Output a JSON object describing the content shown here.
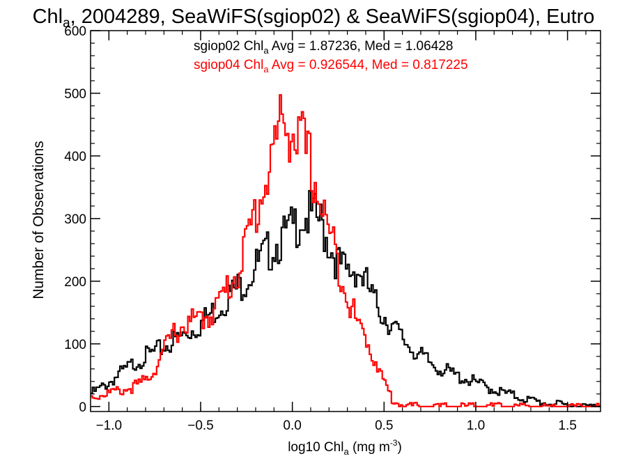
{
  "chart_data": {
    "type": "line",
    "title": {
      "prefix": "Chl",
      "sub": "a",
      "rest": ", 2004289, SeaWiFS(sgiop02) & SeaWiFS(sgiop04), Eutro"
    },
    "xlabel": {
      "prefix": "log10 Chl",
      "sub": "a",
      "rest": " (mg m",
      "sup": "-3",
      "close": ")"
    },
    "ylabel": "Number of Observations",
    "xlim": [
      -1.1,
      1.68
    ],
    "ylim": [
      -8,
      600
    ],
    "xticks": [
      -1.0,
      -0.5,
      0.0,
      0.5,
      1.0,
      1.5
    ],
    "xtick_labels": [
      "−1.0",
      "−0.5",
      "0.0",
      "0.5",
      "1.0",
      "1.5"
    ],
    "yticks": [
      0,
      100,
      200,
      300,
      400,
      500,
      600
    ],
    "ytick_labels": [
      "0",
      "100",
      "200",
      "300",
      "400",
      "500",
      "600"
    ],
    "grid": false,
    "legend_position": "top",
    "series": [
      {
        "color": "#000000",
        "stats": {
          "prefix": "sgiop02 Chl",
          "sub": "a",
          "rest": " Avg = 1.87236, Med = 1.06428"
        },
        "points": [
          [
            -1.1,
            20
          ],
          [
            -1.05,
            28
          ],
          [
            -1.0,
            38
          ],
          [
            -0.95,
            50
          ],
          [
            -0.9,
            60
          ],
          [
            -0.85,
            72
          ],
          [
            -0.8,
            80
          ],
          [
            -0.75,
            86
          ],
          [
            -0.7,
            95
          ],
          [
            -0.65,
            104
          ],
          [
            -0.6,
            112
          ],
          [
            -0.55,
            122
          ],
          [
            -0.5,
            132
          ],
          [
            -0.45,
            146
          ],
          [
            -0.4,
            160
          ],
          [
            -0.35,
            176
          ],
          [
            -0.3,
            188
          ],
          [
            -0.25,
            205
          ],
          [
            -0.2,
            222
          ],
          [
            -0.15,
            240
          ],
          [
            -0.1,
            258
          ],
          [
            -0.05,
            268
          ],
          [
            0.0,
            282
          ],
          [
            0.05,
            305
          ],
          [
            0.1,
            302
          ],
          [
            0.15,
            296
          ],
          [
            0.2,
            262
          ],
          [
            0.25,
            228
          ],
          [
            0.3,
            212
          ],
          [
            0.35,
            222
          ],
          [
            0.4,
            198
          ],
          [
            0.45,
            165
          ],
          [
            0.5,
            146
          ],
          [
            0.55,
            126
          ],
          [
            0.6,
            108
          ],
          [
            0.65,
            94
          ],
          [
            0.7,
            80
          ],
          [
            0.75,
            70
          ],
          [
            0.8,
            62
          ],
          [
            0.85,
            55
          ],
          [
            0.9,
            48
          ],
          [
            0.95,
            44
          ],
          [
            1.0,
            38
          ],
          [
            1.05,
            32
          ],
          [
            1.1,
            27
          ],
          [
            1.15,
            22
          ],
          [
            1.2,
            18
          ],
          [
            1.25,
            14
          ],
          [
            1.3,
            10
          ],
          [
            1.35,
            7
          ],
          [
            1.4,
            5
          ],
          [
            1.45,
            3
          ],
          [
            1.5,
            2
          ],
          [
            1.55,
            1
          ],
          [
            1.6,
            0
          ],
          [
            1.68,
            0
          ]
        ]
      },
      {
        "color": "#ff0000",
        "stats": {
          "prefix": "sgiop04 Chl",
          "sub": "a",
          "rest": " Avg = 0.926544, Med = 0.817225"
        },
        "points": [
          [
            -1.1,
            15
          ],
          [
            -1.05,
            18
          ],
          [
            -1.0,
            22
          ],
          [
            -0.95,
            24
          ],
          [
            -0.9,
            28
          ],
          [
            -0.85,
            33
          ],
          [
            -0.8,
            42
          ],
          [
            -0.75,
            60
          ],
          [
            -0.7,
            90
          ],
          [
            -0.65,
            115
          ],
          [
            -0.6,
            128
          ],
          [
            -0.55,
            135
          ],
          [
            -0.5,
            138
          ],
          [
            -0.45,
            148
          ],
          [
            -0.4,
            165
          ],
          [
            -0.35,
            190
          ],
          [
            -0.3,
            215
          ],
          [
            -0.25,
            260
          ],
          [
            -0.2,
            310
          ],
          [
            -0.15,
            355
          ],
          [
            -0.1,
            410
          ],
          [
            -0.05,
            460
          ],
          [
            0.0,
            440
          ],
          [
            0.05,
            420
          ],
          [
            0.1,
            385
          ],
          [
            0.15,
            330
          ],
          [
            0.2,
            278
          ],
          [
            0.25,
            230
          ],
          [
            0.3,
            180
          ],
          [
            0.35,
            135
          ],
          [
            0.4,
            110
          ],
          [
            0.45,
            75
          ],
          [
            0.5,
            40
          ],
          [
            0.55,
            8
          ],
          [
            0.6,
            2
          ],
          [
            0.65,
            1
          ],
          [
            0.7,
            0
          ],
          [
            1.68,
            0
          ]
        ]
      }
    ]
  }
}
